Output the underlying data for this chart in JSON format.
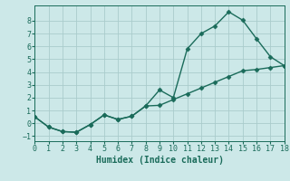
{
  "xlabel": "Humidex (Indice chaleur)",
  "background_color": "#cce8e8",
  "grid_color": "#aacccc",
  "line_color": "#1a6b5a",
  "x_data1": [
    0,
    1,
    2,
    3,
    4,
    5,
    6,
    7,
    8,
    9,
    10,
    11,
    12,
    13,
    14,
    15,
    16,
    17,
    18
  ],
  "y_data1": [
    0.5,
    -0.3,
    -0.65,
    -0.7,
    -0.1,
    0.65,
    0.3,
    0.55,
    1.35,
    2.6,
    2.0,
    5.8,
    7.0,
    7.6,
    8.7,
    8.05,
    6.6,
    5.2,
    4.5
  ],
  "x_data2": [
    0,
    1,
    2,
    3,
    4,
    5,
    6,
    7,
    8,
    9,
    10,
    11,
    12,
    13,
    14,
    15,
    16,
    17,
    18
  ],
  "y_data2": [
    0.5,
    -0.3,
    -0.65,
    -0.7,
    -0.1,
    0.65,
    0.3,
    0.55,
    1.35,
    1.4,
    1.85,
    2.3,
    2.75,
    3.2,
    3.65,
    4.1,
    4.2,
    4.35,
    4.5
  ],
  "xlim": [
    0,
    18
  ],
  "ylim": [
    -1.4,
    9.2
  ],
  "xticks": [
    0,
    1,
    2,
    3,
    4,
    5,
    6,
    7,
    8,
    9,
    10,
    11,
    12,
    13,
    14,
    15,
    16,
    17,
    18
  ],
  "yticks": [
    -1,
    0,
    1,
    2,
    3,
    4,
    5,
    6,
    7,
    8
  ],
  "fontsize_label": 7,
  "fontsize_tick": 6,
  "marker": "D",
  "marker_size": 2.5,
  "line_width": 1.0
}
